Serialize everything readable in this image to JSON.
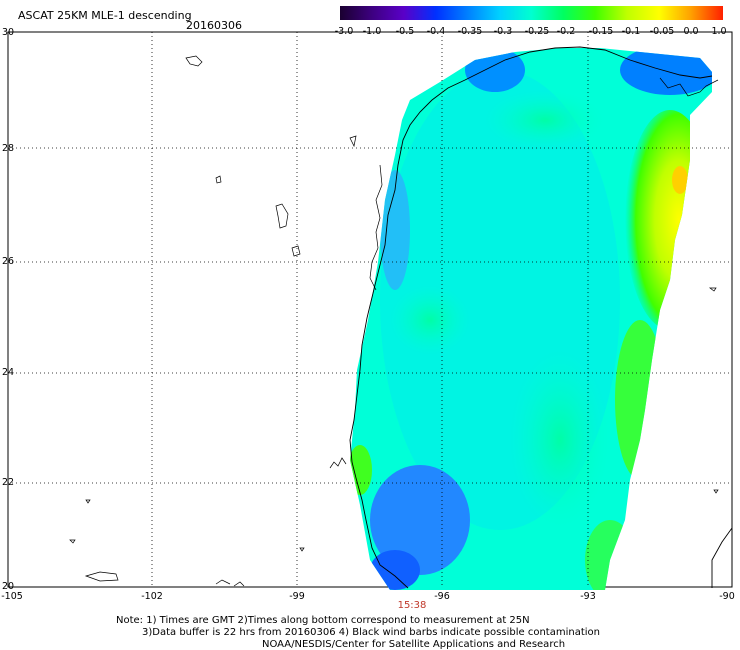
{
  "title": "ASCAT 25KM MLE-1 descending",
  "date": "20160306",
  "colorbar": {
    "labels": [
      "-3.0",
      "-1.0",
      "-0.5",
      "-0.4",
      "-0.35",
      "-0.3",
      "-0.25",
      "-0.2",
      "-0.15",
      "-0.1",
      "-0.05",
      "0.0",
      "1.0"
    ],
    "colors": [
      "#1a0030",
      "#3d0080",
      "#5a00c8",
      "#0030ff",
      "#0080ff",
      "#00d0ff",
      "#00ffd0",
      "#00ff60",
      "#40ff00",
      "#c0ff00",
      "#ffff00",
      "#ffa000",
      "#ff2000"
    ]
  },
  "axes": {
    "lat_labels": [
      "30",
      "28",
      "26",
      "24",
      "22",
      "20"
    ],
    "lon_labels": [
      "-105",
      "-102",
      "-99",
      "-96",
      "-93",
      "-90"
    ]
  },
  "time_label": "15:38",
  "notes": {
    "line1": "Note: 1) Times are GMT 2)Times along bottom correspond to measurement at 25N",
    "line2": "3)Data buffer is 22 hrs from 20160306 4) Black wind barbs indicate possible contamination",
    "line3": "NOAA/NESDIS/Center for Satellite Applications and Research"
  }
}
